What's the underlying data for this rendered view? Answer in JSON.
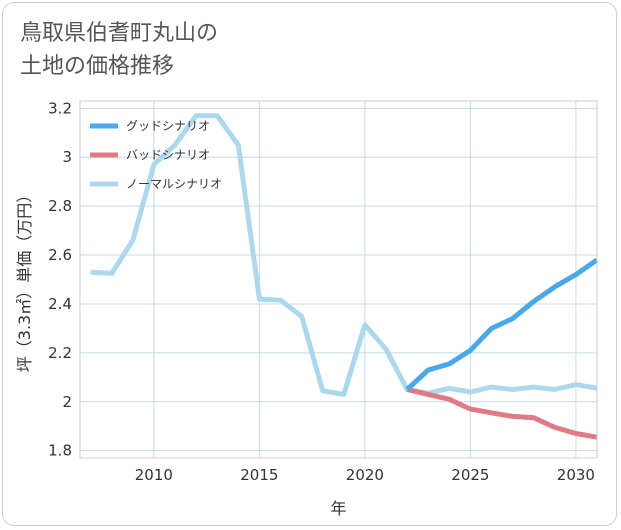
{
  "title": {
    "line1": "鳥取県伯耆町丸山の",
    "line2": "土地の価格推移"
  },
  "chart_data": {
    "type": "line",
    "xlabel": "年",
    "ylabel": "坪（3.3㎡）単価（万円）",
    "xlim": [
      2006.5,
      2031
    ],
    "ylim": [
      1.77,
      3.23
    ],
    "xticks": [
      2010,
      2015,
      2020,
      2025,
      2030
    ],
    "yticks": [
      1.8,
      2,
      2.2,
      2.4,
      2.6,
      2.8,
      3,
      3.2
    ],
    "ytick_labels": [
      "1.8",
      "2",
      "2.2",
      "2.4",
      "2.6",
      "2.8",
      "3",
      "3.2"
    ],
    "grid": true,
    "legend_position": "top-left",
    "series": [
      {
        "name": "ノーマルシナリオ",
        "color": "#add8ec",
        "x": [
          2007,
          2008,
          2009,
          2010,
          2011,
          2012,
          2013,
          2014,
          2015,
          2016,
          2017,
          2018,
          2019,
          2020,
          2021,
          2022,
          2023,
          2024,
          2025,
          2026,
          2027,
          2028,
          2029,
          2030,
          2031
        ],
        "values": [
          2.53,
          2.525,
          2.66,
          2.97,
          3.05,
          3.17,
          3.17,
          3.05,
          2.42,
          2.415,
          2.35,
          2.045,
          2.03,
          2.315,
          2.215,
          2.05,
          2.035,
          2.055,
          2.04,
          2.06,
          2.05,
          2.06,
          2.05,
          2.07,
          2.055
        ]
      },
      {
        "name": "バッドシナリオ",
        "color": "#e07b86",
        "x": [
          2022,
          2023,
          2024,
          2025,
          2026,
          2027,
          2028,
          2029,
          2030,
          2031
        ],
        "values": [
          2.05,
          2.03,
          2.01,
          1.97,
          1.955,
          1.94,
          1.935,
          1.895,
          1.87,
          1.855
        ]
      },
      {
        "name": "グッドシナリオ",
        "color": "#4aa8ea",
        "x": [
          2022,
          2023,
          2024,
          2025,
          2026,
          2027,
          2028,
          2029,
          2030,
          2031
        ],
        "values": [
          2.05,
          2.13,
          2.155,
          2.21,
          2.3,
          2.34,
          2.41,
          2.47,
          2.52,
          2.58
        ]
      }
    ],
    "legend": [
      "グッドシナリオ",
      "バッドシナリオ",
      "ノーマルシナリオ"
    ]
  }
}
